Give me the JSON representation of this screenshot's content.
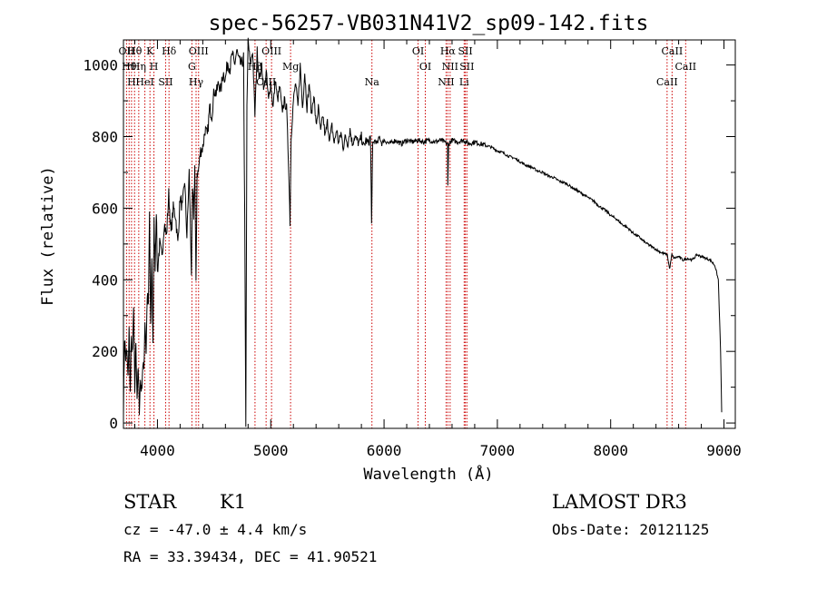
{
  "chart_data": {
    "type": "line",
    "title": "spec-56257-VB031N41V2_sp09-142.fits",
    "xlabel": "Wavelength (Å)",
    "ylabel": "Flux (relative)",
    "xlim": [
      3700,
      9100
    ],
    "ylim": [
      -15,
      1070
    ],
    "xticks": [
      4000,
      5000,
      6000,
      7000,
      8000,
      9000
    ],
    "yticks": [
      0,
      200,
      400,
      600,
      800,
      1000
    ],
    "spectrum_keypoints": [
      [
        3700,
        40
      ],
      [
        3710,
        240
      ],
      [
        3720,
        180
      ],
      [
        3730,
        200
      ],
      [
        3740,
        120
      ],
      [
        3750,
        260
      ],
      [
        3760,
        80
      ],
      [
        3770,
        230
      ],
      [
        3780,
        190
      ],
      [
        3790,
        320
      ],
      [
        3800,
        90
      ],
      [
        3810,
        230
      ],
      [
        3820,
        70
      ],
      [
        3830,
        150
      ],
      [
        3840,
        40
      ],
      [
        3850,
        120
      ],
      [
        3860,
        90
      ],
      [
        3870,
        160
      ],
      [
        3880,
        150
      ],
      [
        3890,
        290
      ],
      [
        3900,
        200
      ],
      [
        3910,
        360
      ],
      [
        3920,
        320
      ],
      [
        3930,
        590
      ],
      [
        3940,
        260
      ],
      [
        3950,
        470
      ],
      [
        3960,
        230
      ],
      [
        3970,
        560
      ],
      [
        3980,
        440
      ],
      [
        3990,
        600
      ],
      [
        4000,
        420
      ],
      [
        4020,
        500
      ],
      [
        4040,
        460
      ],
      [
        4060,
        560
      ],
      [
        4080,
        520
      ],
      [
        4100,
        640
      ],
      [
        4120,
        530
      ],
      [
        4140,
        600
      ],
      [
        4160,
        580
      ],
      [
        4180,
        500
      ],
      [
        4200,
        630
      ],
      [
        4220,
        600
      ],
      [
        4240,
        680
      ],
      [
        4260,
        520
      ],
      [
        4280,
        700
      ],
      [
        4300,
        420
      ],
      [
        4310,
        650
      ],
      [
        4320,
        580
      ],
      [
        4330,
        720
      ],
      [
        4340,
        380
      ],
      [
        4350,
        700
      ],
      [
        4360,
        700
      ],
      [
        4380,
        760
      ],
      [
        4400,
        770
      ],
      [
        4420,
        820
      ],
      [
        4440,
        800
      ],
      [
        4460,
        880
      ],
      [
        4480,
        860
      ],
      [
        4500,
        930
      ],
      [
        4520,
        920
      ],
      [
        4540,
        950
      ],
      [
        4560,
        930
      ],
      [
        4580,
        980
      ],
      [
        4600,
        960
      ],
      [
        4620,
        1010
      ],
      [
        4640,
        990
      ],
      [
        4660,
        1030
      ],
      [
        4680,
        1000
      ],
      [
        4700,
        1040
      ],
      [
        4720,
        1010
      ],
      [
        4740,
        1000
      ],
      [
        4760,
        1020
      ],
      [
        4770,
        560
      ],
      [
        4780,
        0
      ],
      [
        4790,
        870
      ],
      [
        4800,
        1070
      ],
      [
        4820,
        1000
      ],
      [
        4840,
        1040
      ],
      [
        4860,
        860
      ],
      [
        4880,
        1040
      ],
      [
        4900,
        960
      ],
      [
        4920,
        1000
      ],
      [
        4940,
        930
      ],
      [
        4960,
        980
      ],
      [
        4980,
        900
      ],
      [
        5000,
        950
      ],
      [
        5020,
        880
      ],
      [
        5040,
        960
      ],
      [
        5060,
        900
      ],
      [
        5080,
        940
      ],
      [
        5100,
        870
      ],
      [
        5120,
        900
      ],
      [
        5140,
        880
      ],
      [
        5160,
        700
      ],
      [
        5170,
        560
      ],
      [
        5180,
        800
      ],
      [
        5200,
        900
      ],
      [
        5220,
        950
      ],
      [
        5240,
        880
      ],
      [
        5260,
        1000
      ],
      [
        5280,
        880
      ],
      [
        5300,
        980
      ],
      [
        5320,
        880
      ],
      [
        5340,
        950
      ],
      [
        5360,
        860
      ],
      [
        5380,
        920
      ],
      [
        5400,
        830
      ],
      [
        5420,
        880
      ],
      [
        5440,
        810
      ],
      [
        5460,
        860
      ],
      [
        5480,
        800
      ],
      [
        5500,
        840
      ],
      [
        5520,
        790
      ],
      [
        5540,
        830
      ],
      [
        5560,
        780
      ],
      [
        5580,
        820
      ],
      [
        5600,
        780
      ],
      [
        5620,
        810
      ],
      [
        5640,
        770
      ],
      [
        5660,
        800
      ],
      [
        5680,
        780
      ],
      [
        5700,
        820
      ],
      [
        5720,
        780
      ],
      [
        5740,
        800
      ],
      [
        5760,
        790
      ],
      [
        5780,
        780
      ],
      [
        5800,
        800
      ],
      [
        5820,
        770
      ],
      [
        5840,
        790
      ],
      [
        5860,
        780
      ],
      [
        5880,
        800
      ],
      [
        5890,
        570
      ],
      [
        5900,
        780
      ],
      [
        5920,
        790
      ],
      [
        5940,
        780
      ],
      [
        5960,
        800
      ],
      [
        5980,
        780
      ],
      [
        6000,
        790
      ],
      [
        6050,
        780
      ],
      [
        6100,
        790
      ],
      [
        6150,
        780
      ],
      [
        6200,
        790
      ],
      [
        6250,
        785
      ],
      [
        6300,
        790
      ],
      [
        6350,
        785
      ],
      [
        6400,
        790
      ],
      [
        6450,
        785
      ],
      [
        6500,
        790
      ],
      [
        6560,
        780
      ],
      [
        6563,
        660
      ],
      [
        6570,
        780
      ],
      [
        6600,
        790
      ],
      [
        6650,
        785
      ],
      [
        6700,
        790
      ],
      [
        6750,
        780
      ],
      [
        6800,
        785
      ],
      [
        6850,
        780
      ],
      [
        6900,
        775
      ],
      [
        6950,
        770
      ],
      [
        7000,
        760
      ],
      [
        7050,
        755
      ],
      [
        7100,
        745
      ],
      [
        7150,
        740
      ],
      [
        7200,
        730
      ],
      [
        7250,
        720
      ],
      [
        7300,
        715
      ],
      [
        7350,
        705
      ],
      [
        7400,
        700
      ],
      [
        7450,
        690
      ],
      [
        7500,
        685
      ],
      [
        7550,
        675
      ],
      [
        7600,
        670
      ],
      [
        7650,
        660
      ],
      [
        7700,
        650
      ],
      [
        7750,
        640
      ],
      [
        7800,
        630
      ],
      [
        7850,
        620
      ],
      [
        7900,
        605
      ],
      [
        7950,
        595
      ],
      [
        8000,
        580
      ],
      [
        8050,
        570
      ],
      [
        8100,
        555
      ],
      [
        8150,
        545
      ],
      [
        8200,
        530
      ],
      [
        8250,
        520
      ],
      [
        8300,
        505
      ],
      [
        8350,
        495
      ],
      [
        8400,
        485
      ],
      [
        8450,
        475
      ],
      [
        8500,
        470
      ],
      [
        8520,
        430
      ],
      [
        8540,
        470
      ],
      [
        8560,
        460
      ],
      [
        8600,
        465
      ],
      [
        8640,
        455
      ],
      [
        8680,
        460
      ],
      [
        8720,
        455
      ],
      [
        8760,
        470
      ],
      [
        8800,
        465
      ],
      [
        8840,
        460
      ],
      [
        8880,
        455
      ],
      [
        8920,
        440
      ],
      [
        8950,
        400
      ],
      [
        8970,
        200
      ],
      [
        8980,
        30
      ]
    ],
    "emission_lines": [
      {
        "wl": 3727,
        "label": "OII"
      },
      {
        "wl": 3750,
        "label": "Hθ"
      },
      {
        "wl": 3771,
        "label": "H"
      },
      {
        "wl": 3798,
        "label": "Hθ"
      },
      {
        "wl": 3835,
        "label": "Hη"
      },
      {
        "wl": 3889,
        "label": "HeI"
      },
      {
        "wl": 3934,
        "label": "K"
      },
      {
        "wl": 3969,
        "label": "H"
      },
      {
        "wl": 4072,
        "label": "SII"
      },
      {
        "wl": 4102,
        "label": "Hδ"
      },
      {
        "wl": 4304,
        "label": "G"
      },
      {
        "wl": 4341,
        "label": "Hγ"
      },
      {
        "wl": 4363,
        "label": "OIII"
      },
      {
        "wl": 4861,
        "label": "Hβ"
      },
      {
        "wl": 4959,
        "label": "OIII"
      },
      {
        "wl": 5007,
        "label": "OIII"
      },
      {
        "wl": 5175,
        "label": "Mg"
      },
      {
        "wl": 5893,
        "label": "Na"
      },
      {
        "wl": 6300,
        "label": "OI"
      },
      {
        "wl": 6364,
        "label": "OI"
      },
      {
        "wl": 6548,
        "label": "NII"
      },
      {
        "wl": 6563,
        "label": "Hα"
      },
      {
        "wl": 6583,
        "label": "NII"
      },
      {
        "wl": 6707,
        "label": "Li"
      },
      {
        "wl": 6717,
        "label": "SII"
      },
      {
        "wl": 6731,
        "label": "SII"
      },
      {
        "wl": 8498,
        "label": "CaII"
      },
      {
        "wl": 8542,
        "label": "CaII"
      },
      {
        "wl": 8662,
        "label": "CaII"
      }
    ],
    "line_color": "#000000",
    "marker_color": "#cc0000"
  },
  "info": {
    "class": "STAR",
    "subclass": "K1",
    "survey": "LAMOST DR3",
    "cz": "cz = -47.0 ± 4.4 km/s",
    "obs_date": "Obs-Date: 20121125",
    "radec": "RA =  33.39434, DEC =  41.90521"
  }
}
